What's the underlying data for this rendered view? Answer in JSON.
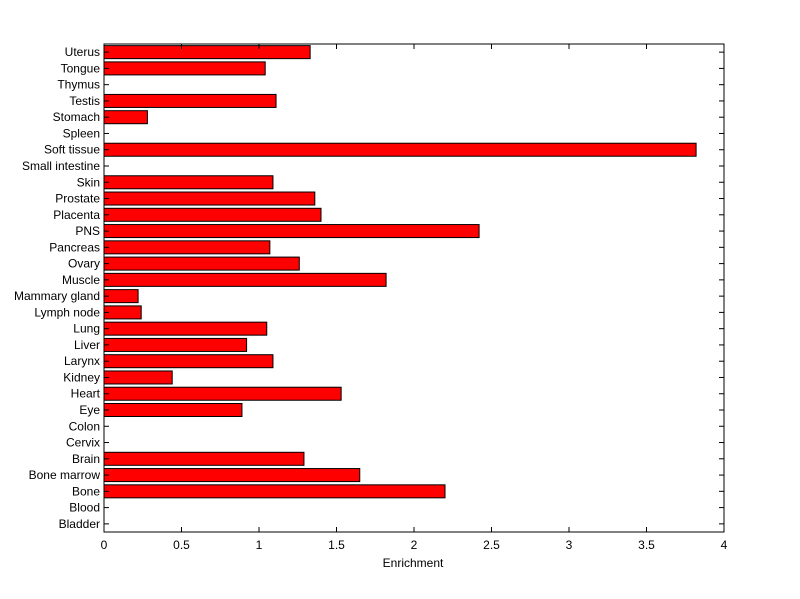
{
  "chart_data": {
    "type": "bar",
    "orientation": "horizontal",
    "title": "",
    "xlabel": "Enrichment",
    "ylabel": "",
    "xlim": [
      0,
      4
    ],
    "xticks": [
      "0",
      "0.5",
      "1",
      "1.5",
      "2",
      "2.5",
      "3",
      "3.5",
      "4"
    ],
    "grid": false,
    "legend": "none",
    "bar_color": "#ff0000",
    "categories": [
      "Bladder",
      "Blood",
      "Bone",
      "Bone marrow",
      "Brain",
      "Cervix",
      "Colon",
      "Eye",
      "Heart",
      "Kidney",
      "Larynx",
      "Liver",
      "Lung",
      "Lymph node",
      "Mammary gland",
      "Muscle",
      "Ovary",
      "Pancreas",
      "PNS",
      "Placenta",
      "Prostate",
      "Skin",
      "Small intestine",
      "Soft tissue",
      "Spleen",
      "Stomach",
      "Testis",
      "Thymus",
      "Tongue",
      "Uterus"
    ],
    "values": [
      0,
      0,
      2.2,
      1.65,
      1.29,
      0,
      0,
      0.89,
      1.53,
      0.44,
      1.09,
      0.92,
      1.05,
      0.24,
      0.22,
      1.82,
      1.26,
      1.07,
      2.42,
      1.4,
      1.36,
      1.09,
      0,
      3.82,
      0,
      0.28,
      1.11,
      0,
      1.04,
      1.33
    ]
  }
}
